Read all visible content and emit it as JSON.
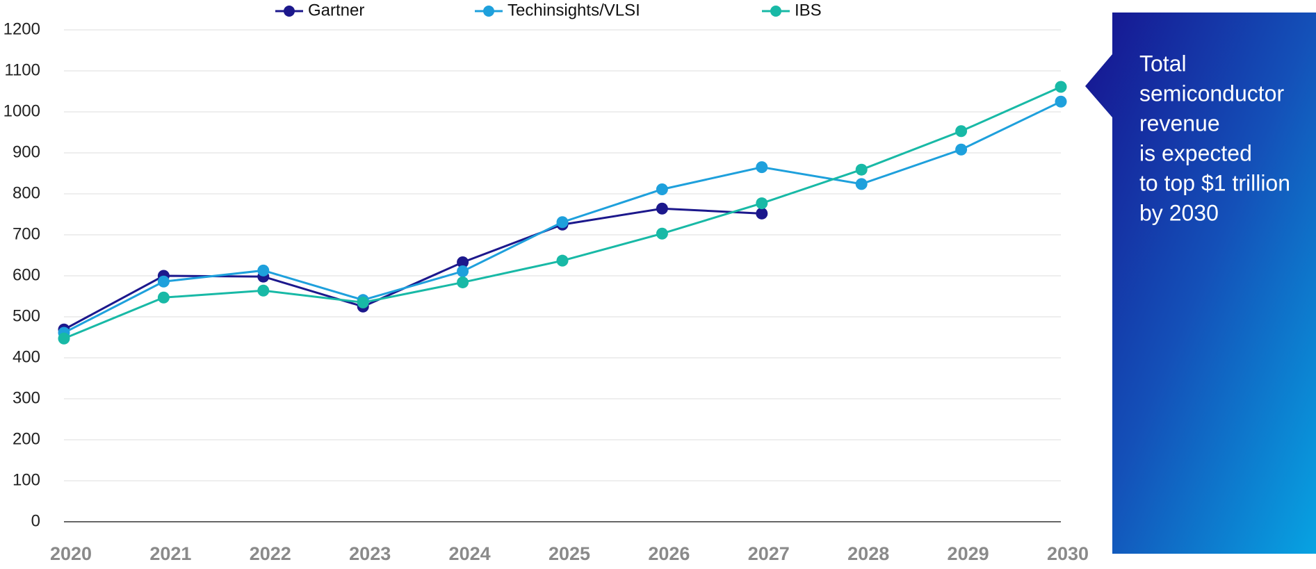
{
  "chart_data": {
    "type": "line",
    "x": [
      2020,
      2021,
      2022,
      2023,
      2024,
      2025,
      2026,
      2027,
      2028,
      2029,
      2030
    ],
    "xlim": [
      2020,
      2030
    ],
    "xticks": [
      2020,
      2021,
      2022,
      2023,
      2024,
      2025,
      2026,
      2027,
      2028,
      2029,
      2030
    ],
    "ylim": [
      0,
      1200
    ],
    "yticks": [
      0,
      100,
      200,
      300,
      400,
      500,
      600,
      700,
      800,
      900,
      1000,
      1100,
      1200
    ],
    "grid": true,
    "legend": "top",
    "series": [
      {
        "name": "Gartner",
        "color": "#1c188c",
        "values": [
          469,
          600,
          598,
          525,
          633,
          725,
          764,
          752,
          null,
          null,
          null
        ]
      },
      {
        "name": "Techinsights/VLSI",
        "color": "#1ea0dc",
        "values": [
          461,
          586,
          613,
          541,
          611,
          731,
          811,
          865,
          824,
          908,
          1025
        ]
      },
      {
        "name": "IBS",
        "color": "#18b9a6",
        "values": [
          447,
          547,
          564,
          535,
          584,
          637,
          703,
          777,
          859,
          953,
          1061
        ]
      }
    ],
    "annotation": [
      "Total",
      "semiconductor",
      "revenue",
      "is expected",
      "to top $1 trillion",
      "by 2030"
    ]
  }
}
